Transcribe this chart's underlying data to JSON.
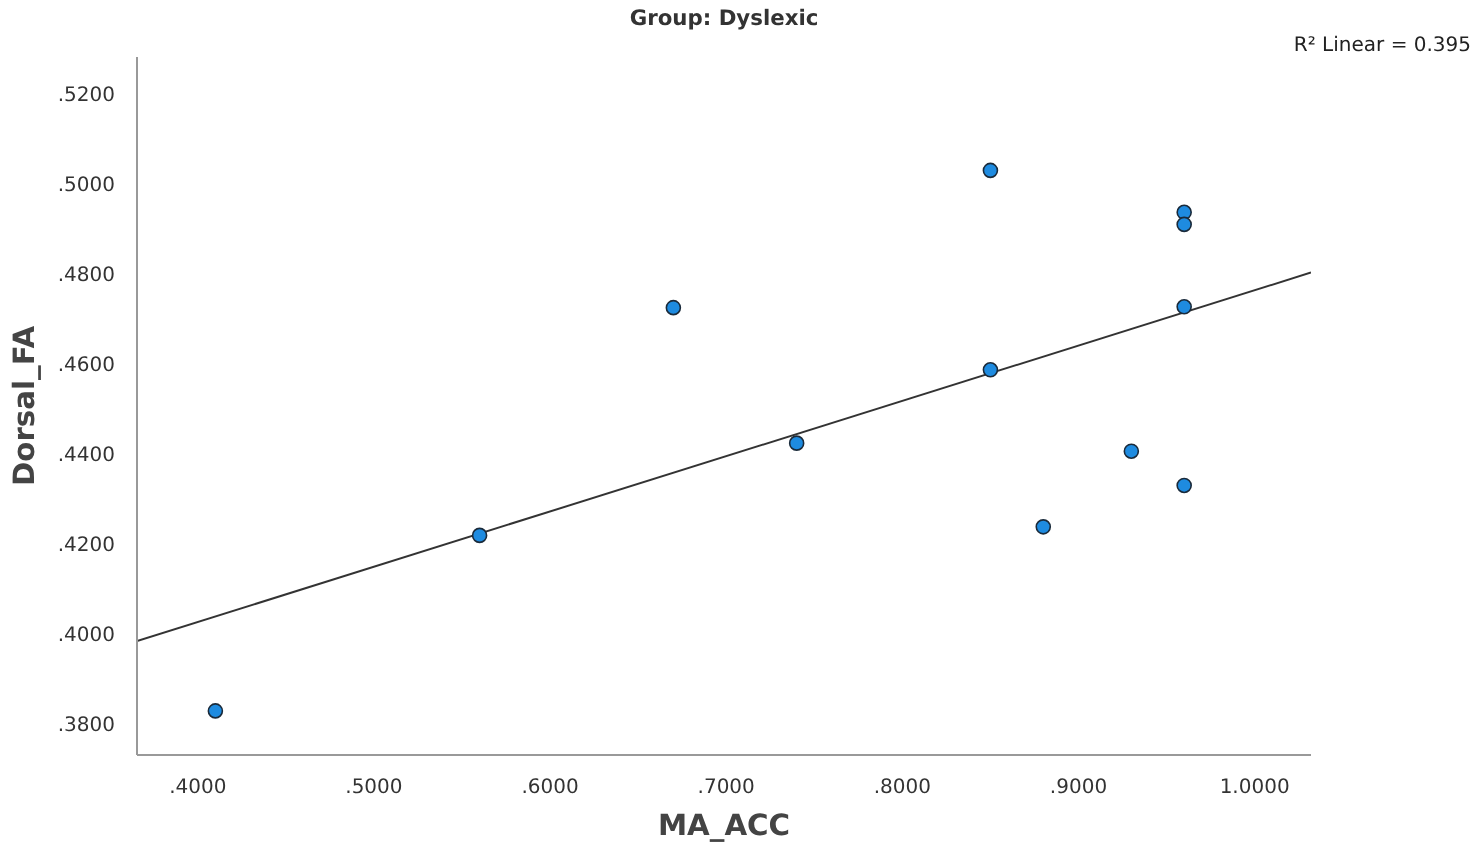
{
  "chart_data": {
    "type": "scatter",
    "title": "Group: Dyslexic",
    "xlabel": "MA_ACC",
    "ylabel": "Dorsal_FA",
    "annotations": [
      "R² Linear = 0.395"
    ],
    "x": [
      0.41,
      0.56,
      0.67,
      0.74,
      0.85,
      0.85,
      0.88,
      0.93,
      0.96,
      0.96,
      0.96,
      0.96
    ],
    "series": [
      {
        "color": "#1e8be0",
        "values": [
          0.3826,
          0.4216,
          0.4722,
          0.4421,
          0.5027,
          0.4584,
          0.4235,
          0.4403,
          0.4934,
          0.4907,
          0.4724,
          0.4327
        ]
      },
      {
        "type": "line",
        "color": "#333333",
        "x": [
          0.3655,
          1.032
        ],
        "values": [
          0.3981,
          0.48
        ]
      }
    ],
    "grid": false,
    "xlim": [
      0.3655,
      1.032
    ],
    "ylim": [
      0.3728,
      0.5279
    ],
    "xticks": [
      {
        "value": 0.4,
        "label": ".4000"
      },
      {
        "value": 0.5,
        "label": ".5000"
      },
      {
        "value": 0.6,
        "label": ".6000"
      },
      {
        "value": 0.7,
        "label": ".7000"
      },
      {
        "value": 0.8,
        "label": ".8000"
      },
      {
        "value": 0.9,
        "label": ".9000"
      },
      {
        "value": 1.0,
        "label": "1.0000"
      }
    ],
    "yticks": [
      {
        "value": 0.38,
        "label": ".3800"
      },
      {
        "value": 0.4,
        "label": ".4000"
      },
      {
        "value": 0.42,
        "label": ".4200"
      },
      {
        "value": 0.44,
        "label": ".4400"
      },
      {
        "value": 0.46,
        "label": ".4600"
      },
      {
        "value": 0.48,
        "label": ".4800"
      },
      {
        "value": 0.5,
        "label": ".5000"
      },
      {
        "value": 0.52,
        "label": ".5200"
      }
    ]
  }
}
